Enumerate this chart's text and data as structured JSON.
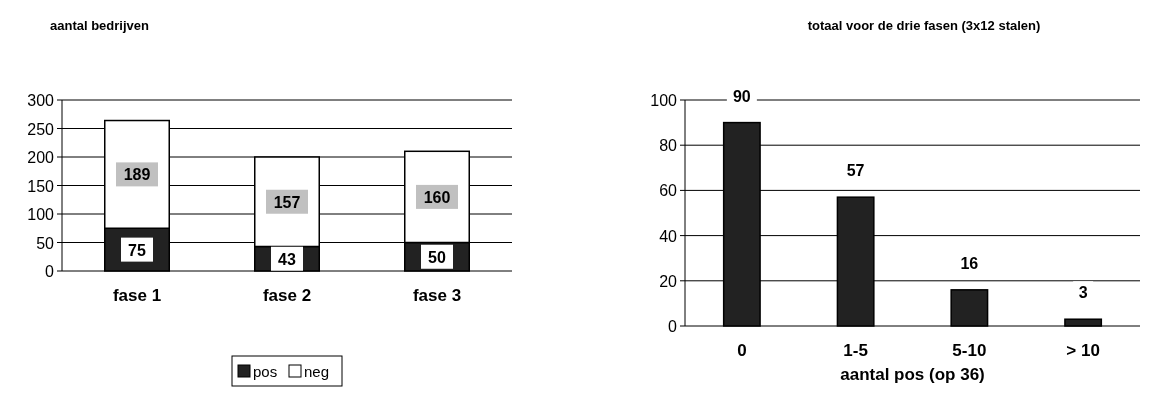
{
  "chart_data": [
    {
      "type": "bar",
      "title": "aantal bedrijven",
      "categories": [
        "fase 1",
        "fase 2",
        "fase 3"
      ],
      "stacked": true,
      "series": [
        {
          "name": "pos",
          "color": "#222222",
          "values": [
            75,
            43,
            50
          ]
        },
        {
          "name": "neg",
          "color": "#ffffff",
          "values": [
            189,
            157,
            160
          ]
        }
      ],
      "ylim": [
        0,
        300
      ],
      "yticks": [
        0,
        50,
        100,
        150,
        200,
        250,
        300
      ],
      "grid": "y",
      "legend": "bottom",
      "data_labels": true
    },
    {
      "type": "bar",
      "title": "totaal voor de drie fasen (3x12 stalen)",
      "xlabel": "aantal pos (op 36)",
      "categories": [
        "0",
        "1-5",
        "5-10",
        "> 10"
      ],
      "values": [
        90,
        57,
        16,
        3
      ],
      "color": "#222222",
      "ylim": [
        0,
        100
      ],
      "yticks": [
        0,
        20,
        40,
        60,
        80,
        100
      ],
      "grid": "y",
      "data_labels": true
    }
  ]
}
